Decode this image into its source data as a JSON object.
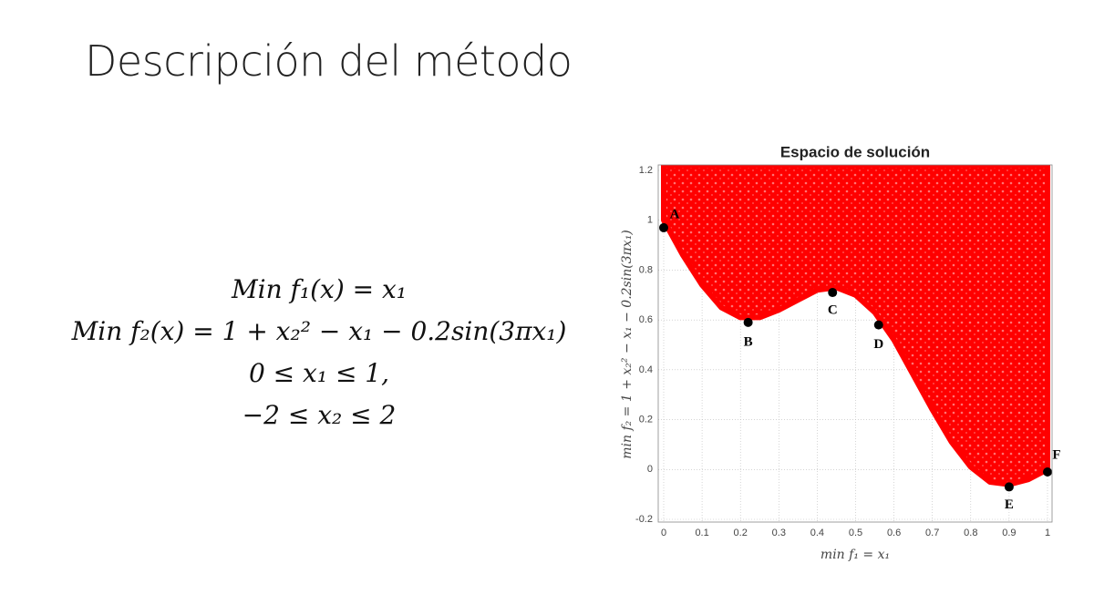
{
  "title": "Descripción del método",
  "equations": [
    "Min f₁(x) = x₁",
    "Min f₂(x) = 1 + x₂² − x₁ − 0.2sin(3πx₁)",
    "0 ≤ x₁ ≤ 1,",
    "−2 ≤ x₂ ≤ 2"
  ],
  "chart_data": {
    "type": "scatter",
    "title": "Espacio de solución",
    "x_label": "min f₁ = x₁",
    "y_label": "min f₂ = 1 + x₂² − x₁ − 0.2sin(3πx₁)",
    "xlim": [
      0,
      1
    ],
    "ylim": [
      -0.2,
      1.2
    ],
    "xticks": [
      0,
      0.1,
      0.2,
      0.3,
      0.4,
      0.5,
      0.6,
      0.7,
      0.8,
      0.9,
      1
    ],
    "yticks": [
      -0.2,
      0,
      0.2,
      0.4,
      0.6,
      0.8,
      1,
      1.2
    ],
    "grid": true,
    "region": {
      "color": "#ff0000",
      "x": [
        0,
        0.05,
        0.1,
        0.15,
        0.2,
        0.25,
        0.3,
        0.35,
        0.4,
        0.45,
        0.5,
        0.55,
        0.6,
        0.65,
        0.7,
        0.75,
        0.8,
        0.85,
        0.9,
        0.95,
        1
      ],
      "y": [
        1,
        0.86,
        0.74,
        0.65,
        0.61,
        0.61,
        0.64,
        0.68,
        0.72,
        0.73,
        0.7,
        0.63,
        0.52,
        0.38,
        0.24,
        0.11,
        0.01,
        -0.05,
        -0.06,
        -0.04,
        0
      ]
    },
    "points": {
      "color": "#000000",
      "labels": [
        "A",
        "B",
        "C",
        "D",
        "E",
        "F"
      ],
      "x": [
        0,
        0.22,
        0.44,
        0.56,
        0.9,
        1
      ],
      "y": [
        0.97,
        0.59,
        0.71,
        0.58,
        -0.07,
        -0.01
      ]
    }
  }
}
